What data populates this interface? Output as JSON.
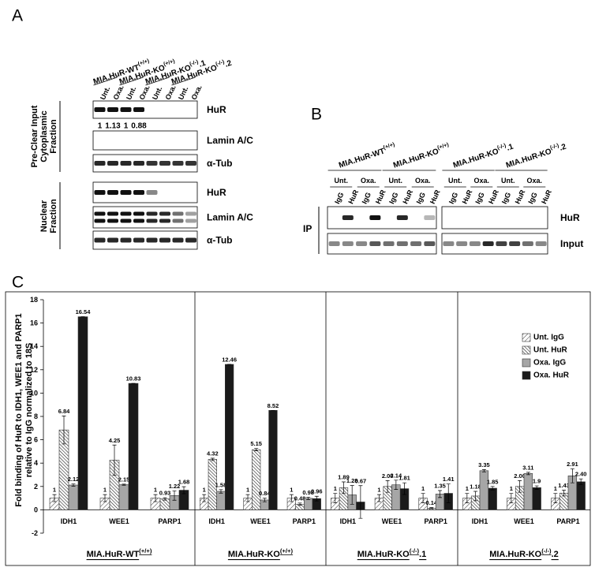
{
  "panel_a": {
    "label": "A",
    "cell_lines": [
      {
        "name": "MIA.HuR-WT",
        "sup": "(+/+)"
      },
      {
        "name": "MIA.HuR-KO",
        "sup": "(+/+)"
      },
      {
        "name": "MIA.HuR-KO",
        "sup": "(-/-)",
        "suffix": ".1"
      },
      {
        "name": "MIA.HuR-KO",
        "sup": "(-/-)",
        "suffix": ".2"
      }
    ],
    "treatments": [
      "Unt.",
      "Oxa.",
      "Unt.",
      "Oxa.",
      "Unt.",
      "Oxa.",
      "Unt.",
      "Oxa."
    ],
    "cytoplasmic": {
      "label": [
        "Pre-Clear Input",
        "Cytoplasmic",
        "Fraction"
      ],
      "blots": [
        "HuR",
        "Lamin A/C",
        "α-Tub"
      ],
      "quantification": [
        1,
        1.13,
        1,
        0.88
      ]
    },
    "nuclear": {
      "label": [
        "Nuclear",
        "Fraction"
      ],
      "blots": [
        "HuR",
        "Lamin A/C",
        "α-Tub"
      ]
    }
  },
  "panel_b": {
    "label": "B",
    "cell_lines": [
      {
        "name": "MIA.HuR-WT",
        "sup": "(+/+)"
      },
      {
        "name": "MIA.HuR-KO",
        "sup": "(+/+)"
      },
      {
        "name": "MIA.HuR-KO",
        "sup": "(-/-)",
        "suffix": ".1"
      },
      {
        "name": "MIA.HuR-KO",
        "sup": "(-/-)",
        "suffix": ".2"
      }
    ],
    "treatments": [
      "Unt.",
      "Oxa.",
      "Unt.",
      "Oxa.",
      "Unt.",
      "Oxa.",
      "Unt.",
      "Oxa."
    ],
    "antibodies": [
      "IgG",
      "HuR",
      "IgG",
      "HuR",
      "IgG",
      "HuR",
      "IgG",
      "HuR",
      "IgG",
      "HuR",
      "IgG",
      "HuR",
      "IgG",
      "HuR",
      "IgG",
      "HuR"
    ],
    "ip_label": "IP",
    "blots": [
      "HuR",
      "Input"
    ]
  },
  "chart_data": {
    "type": "bar",
    "panel_label": "C",
    "y_label": [
      "Fold binding of HuR to IDH1, WEE1 and PARP1",
      "relative to IgG normalized to 18S"
    ],
    "groups": [
      {
        "name": "MIA.HuR-WT",
        "sup": "(+/+)"
      },
      {
        "name": "MIA.HuR-KO",
        "sup": "(+/+)"
      },
      {
        "name": "MIA.HuR-KO",
        "sup": "(-/-)",
        "suffix": ".1"
      },
      {
        "name": "MIA.HuR-KO",
        "sup": "(-/-)",
        "suffix": ".2"
      }
    ],
    "categories": [
      "IDH1",
      "WEE1",
      "PARP1",
      "IDH1",
      "WEE1",
      "PARP1",
      "IDH1",
      "WEE1",
      "PARP1",
      "IDH1",
      "WEE1",
      "PARP1"
    ],
    "series": [
      {
        "name": "Unt. IgG",
        "color": "#ffffff",
        "pattern": "forward-hatch",
        "values": [
          1,
          1,
          1,
          1,
          1,
          1,
          1,
          1,
          1,
          1,
          1,
          1
        ],
        "value_labels": [
          "1",
          "1",
          "1",
          "1",
          "1",
          "1",
          "1",
          "1",
          "1",
          "1",
          "1",
          "1"
        ],
        "errors": [
          0.3,
          0.3,
          0.3,
          0.3,
          0.3,
          0.3,
          0.4,
          0.3,
          0.4,
          0.4,
          0.4,
          0.4
        ]
      },
      {
        "name": "Unt. HuR",
        "color": "#ffffff",
        "pattern": "back-hatch",
        "values": [
          6.84,
          4.25,
          0.93,
          4.32,
          5.15,
          0.48,
          1.89,
          2.0,
          0.14,
          1.18,
          2.0,
          1.43
        ],
        "value_labels": [
          "6.84",
          "4.25",
          "0.93",
          "4.32",
          "5.15",
          "0.48",
          "1.89",
          "2.00",
          "0.14",
          "1.18",
          "2.00",
          "1.43"
        ],
        "errors": [
          1.2,
          1.3,
          0.1,
          0.1,
          0.1,
          0.1,
          0.5,
          0.5,
          0.05,
          0.4,
          0.5,
          0.25
        ]
      },
      {
        "name": "Oxa. IgG",
        "color": "#a6a6a6",
        "values": [
          2.12,
          2.15,
          1.22,
          1.58,
          0.84,
          0.98,
          1.28,
          2.14,
          1.35,
          3.35,
          3.11,
          2.91
        ],
        "value_labels": [
          "2.12",
          "2.15",
          "1.22",
          "1.58",
          "0.84",
          "0.98",
          "1.28",
          "2.14",
          "1.35",
          "3.35",
          "3.11",
          "2.91"
        ],
        "errors": [
          0.1,
          0.05,
          0.4,
          0.15,
          0.15,
          0.1,
          0.8,
          0.4,
          0.3,
          0.1,
          0.1,
          0.6
        ]
      },
      {
        "name": "Oxa. HuR",
        "color": "#1a1a1a",
        "values": [
          16.54,
          10.83,
          1.68,
          12.46,
          8.52,
          0.96,
          0.67,
          1.81,
          1.41,
          1.85,
          1.9,
          2.4
        ],
        "value_labels": [
          "16.54",
          "10.83",
          "1.68",
          "12.46",
          "8.52",
          "0.96",
          "0.67",
          "1.81",
          "1.41",
          "1.85",
          "1.9",
          "2.40"
        ],
        "errors": [
          0,
          0,
          0.3,
          0,
          0,
          0.2,
          1.4,
          0.5,
          0.8,
          0.15,
          0.15,
          0.25
        ]
      }
    ],
    "ylim": [
      -2,
      18
    ],
    "yticks": [
      -2,
      0,
      2,
      4,
      6,
      8,
      10,
      12,
      14,
      16,
      18
    ],
    "legend": "upper right"
  }
}
